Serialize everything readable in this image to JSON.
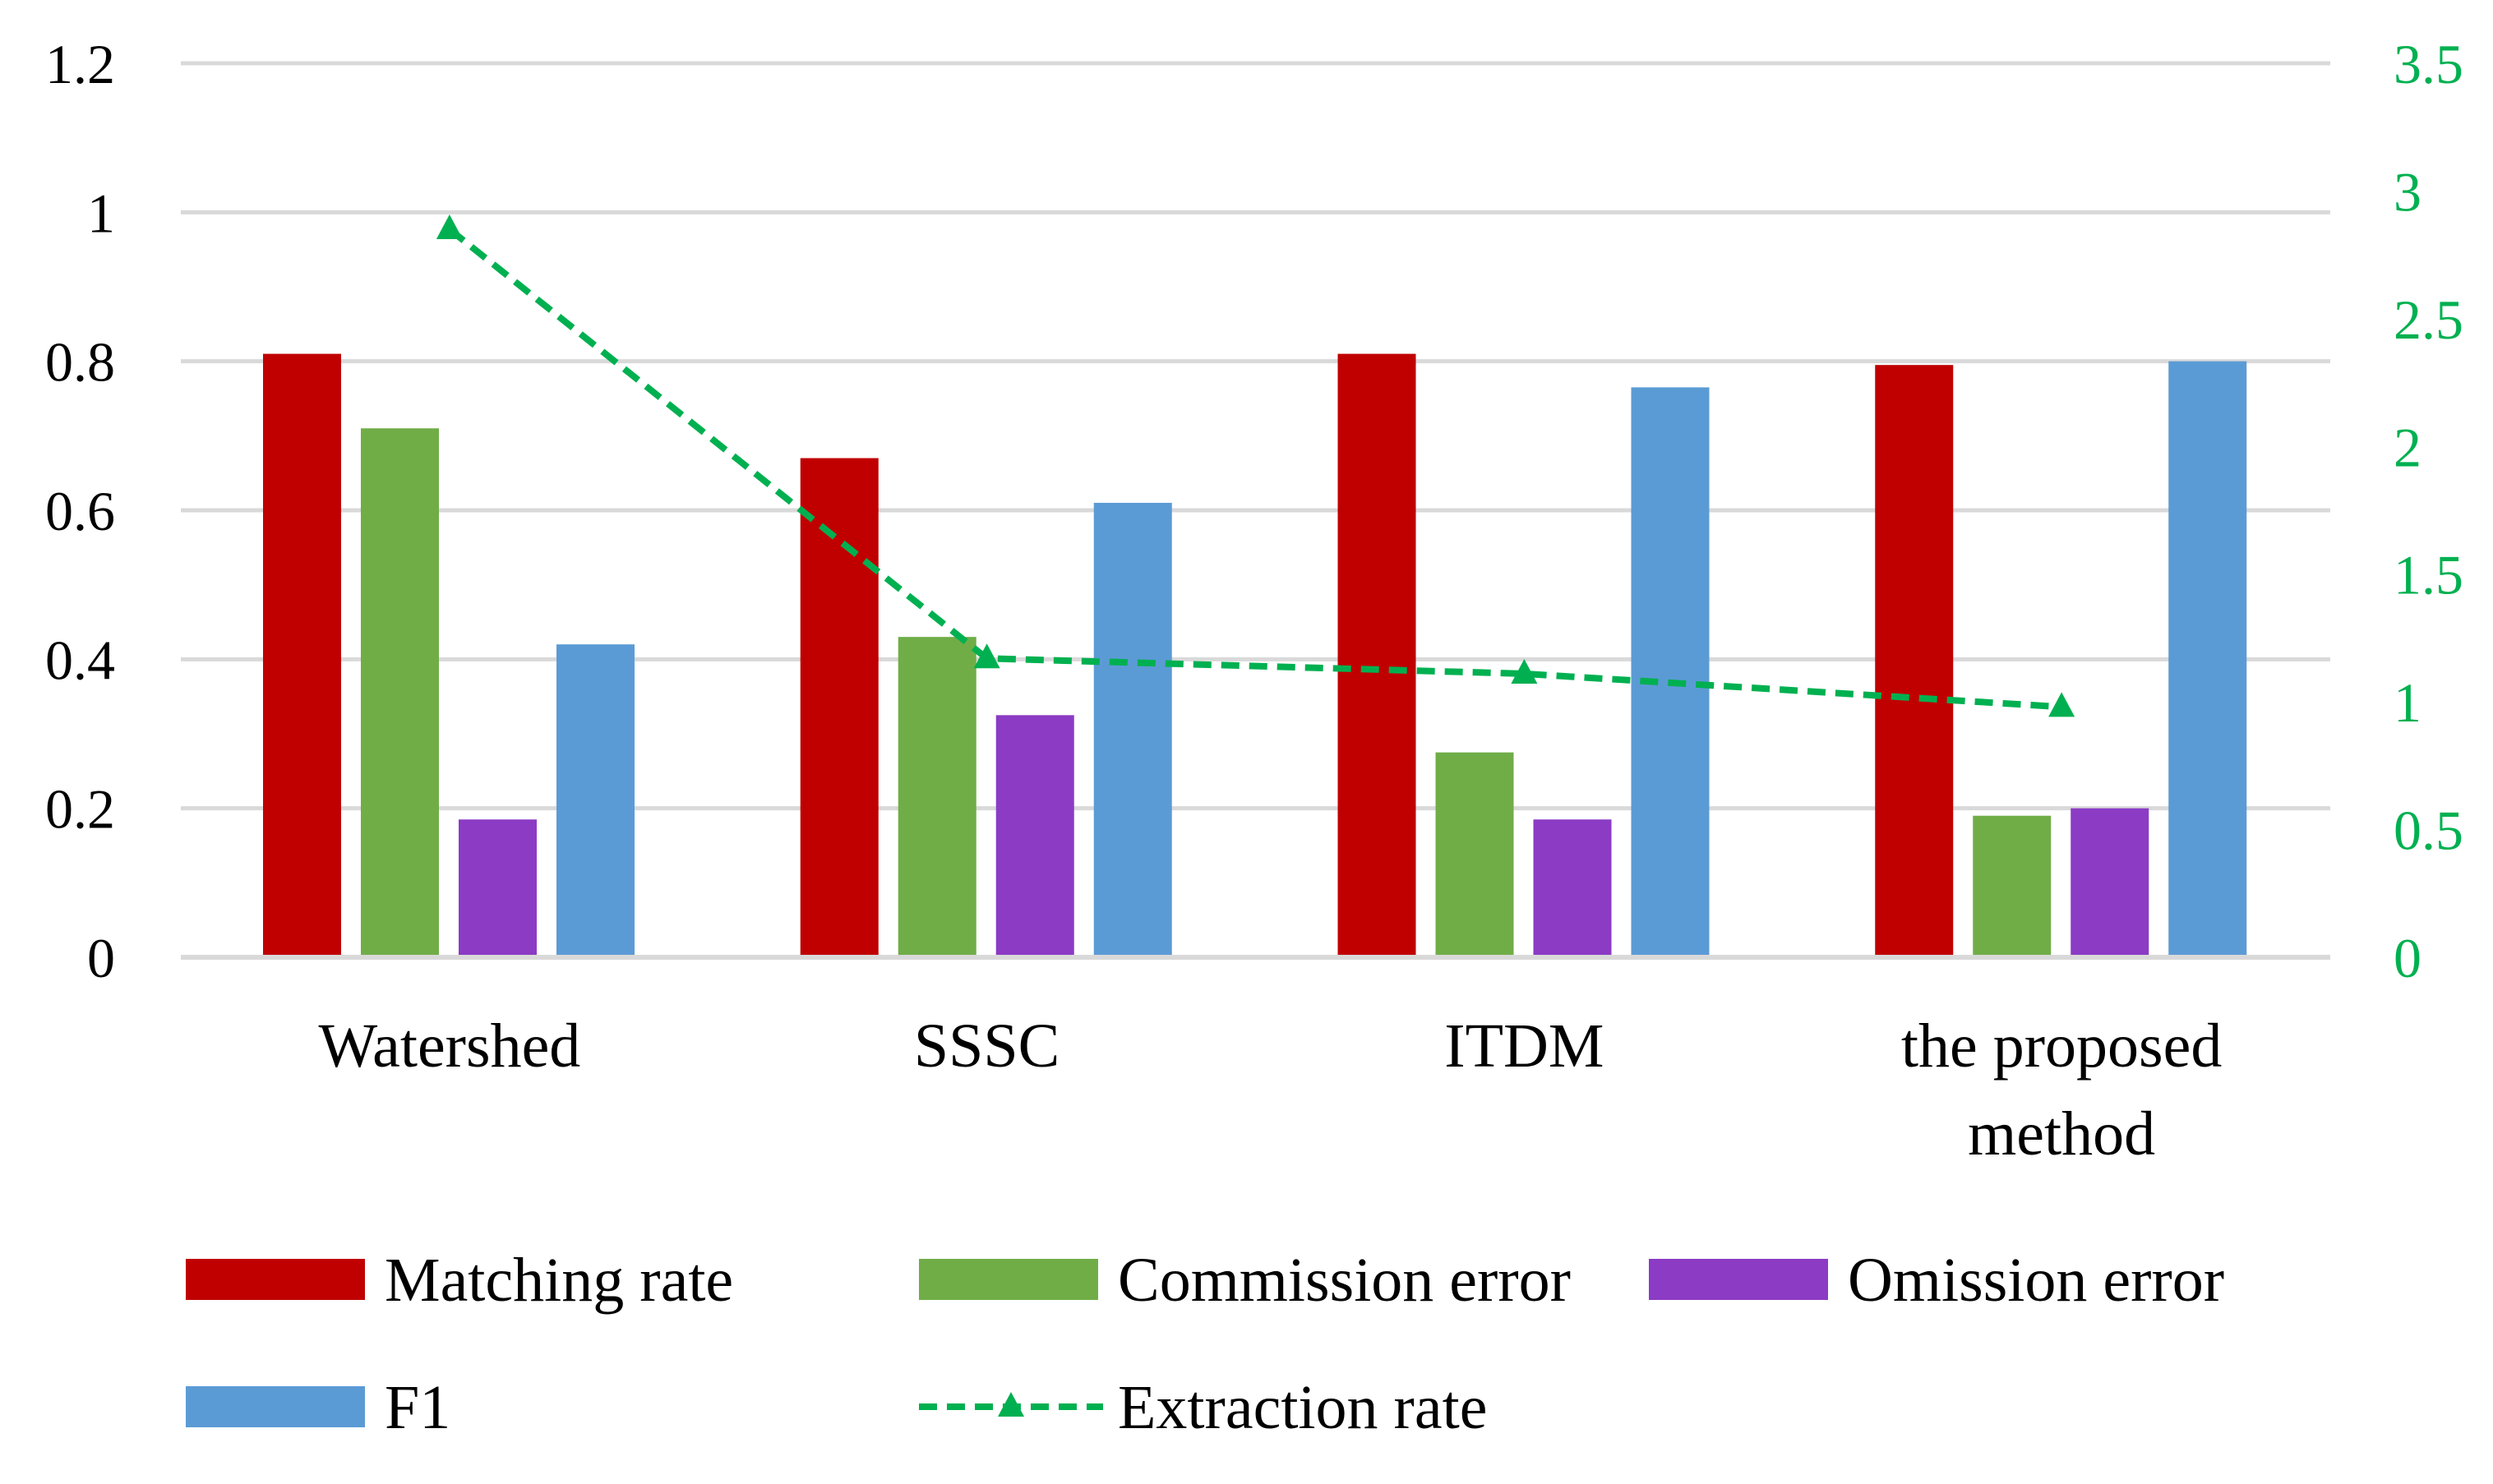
{
  "chart_data": {
    "type": "bar",
    "categories": [
      "Watershed",
      "SSSC",
      "ITDM",
      "the proposed method"
    ],
    "series": [
      {
        "name": "Matching rate",
        "axis": "left",
        "kind": "bar",
        "color": "#C00000",
        "values": [
          0.81,
          0.67,
          0.81,
          0.795
        ]
      },
      {
        "name": "Commission error",
        "axis": "left",
        "kind": "bar",
        "color": "#70AD47",
        "values": [
          0.71,
          0.43,
          0.275,
          0.19
        ]
      },
      {
        "name": "Omission error",
        "axis": "left",
        "kind": "bar",
        "color": "#8B3BC4",
        "values": [
          0.185,
          0.325,
          0.185,
          0.2
        ]
      },
      {
        "name": "F1",
        "axis": "left",
        "kind": "bar",
        "color": "#5B9BD5",
        "values": [
          0.42,
          0.61,
          0.765,
          0.8
        ]
      },
      {
        "name": "Extraction rate",
        "axis": "right",
        "kind": "line",
        "color": "#00B050",
        "values": [
          2.85,
          1.17,
          1.11,
          0.98
        ]
      }
    ],
    "y_left": {
      "min": 0,
      "max": 1.2,
      "ticks": [
        "0",
        "0.2",
        "0.4",
        "0.6",
        "0.8",
        "1",
        "1.2"
      ]
    },
    "y_right": {
      "min": 0,
      "max": 3.5,
      "ticks": [
        "0",
        "0.5",
        "1",
        "1.5",
        "2",
        "2.5",
        "3",
        "3.5"
      ],
      "color": "#00B050"
    },
    "grid": true,
    "legend_position": "bottom"
  }
}
